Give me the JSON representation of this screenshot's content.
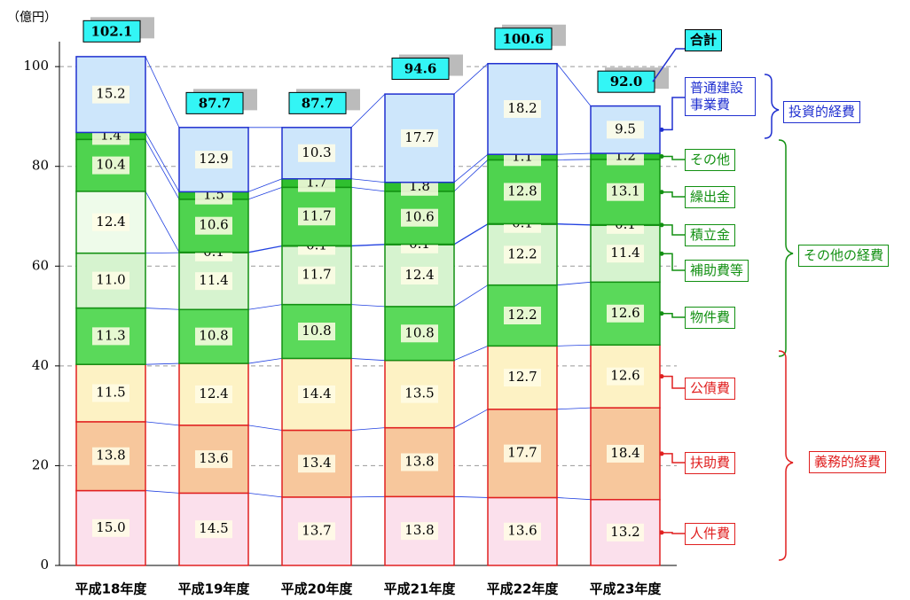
{
  "chart_data": {
    "type": "stacked_bar",
    "unit": "（億円）",
    "categories": [
      "平成18年度",
      "平成19年度",
      "平成20年度",
      "平成21年度",
      "平成22年度",
      "平成23年度"
    ],
    "series": [
      {
        "name": "人件費",
        "color": "#fbe0ec",
        "edgecolor": "#e02020",
        "values": [
          15.0,
          14.5,
          13.7,
          13.8,
          13.6,
          13.2
        ],
        "value_labels": [
          "15.0",
          "14.5",
          "13.7",
          "13.8",
          "13.6",
          "13.2"
        ]
      },
      {
        "name": "扶助費",
        "color": "#f7c79c",
        "edgecolor": "#e02020",
        "values": [
          13.8,
          13.6,
          13.4,
          13.8,
          17.7,
          18.4
        ],
        "value_labels": [
          "13.8",
          "13.6",
          "13.4",
          "13.8",
          "17.7",
          "18.4"
        ]
      },
      {
        "name": "公債費",
        "color": "#fdf2c4",
        "edgecolor": "#e02020",
        "values": [
          11.5,
          12.4,
          14.4,
          13.5,
          12.7,
          12.6
        ],
        "value_labels": [
          "11.5",
          "12.4",
          "14.4",
          "13.5",
          "12.7",
          "12.6"
        ]
      },
      {
        "name": "物件費",
        "color": "#5ad95a",
        "edgecolor": "#129012",
        "values": [
          11.3,
          10.8,
          10.8,
          10.8,
          12.2,
          12.6
        ],
        "value_labels": [
          "11.3",
          "10.8",
          "10.8",
          "10.8",
          "12.2",
          "12.6"
        ]
      },
      {
        "name": "補助費等",
        "color": "#d6f3cf",
        "edgecolor": "#129012",
        "values": [
          11.0,
          11.4,
          11.7,
          12.4,
          12.2,
          11.4
        ],
        "value_labels": [
          "11.0",
          "11.4",
          "11.7",
          "12.4",
          "12.2",
          "11.4"
        ]
      },
      {
        "name": "積立金",
        "color": "#eefbea",
        "edgecolor": "#129012",
        "values": [
          12.4,
          0.1,
          0.1,
          0.1,
          0.1,
          0.1
        ],
        "value_labels": [
          "12.4",
          "0.1",
          "0.1",
          "0.1",
          "0.1",
          "0.1"
        ]
      },
      {
        "name": "繰出金",
        "color": "#4fd34f",
        "edgecolor": "#129012",
        "values": [
          10.4,
          10.6,
          11.7,
          10.6,
          12.8,
          13.1
        ],
        "value_labels": [
          "10.4",
          "10.6",
          "11.7",
          "10.6",
          "12.8",
          "13.1"
        ]
      },
      {
        "name": "その他",
        "color": "#2fbf2f",
        "edgecolor": "#129012",
        "values": [
          1.4,
          1.5,
          1.7,
          1.8,
          1.1,
          1.2
        ],
        "value_labels": [
          "1.4",
          "1.5",
          "1.7",
          "1.8",
          "1.1",
          "1.2"
        ]
      },
      {
        "name": "普通建設事業費",
        "color": "#cde6fb",
        "edgecolor": "#2030d0",
        "values": [
          15.2,
          12.9,
          10.3,
          17.7,
          18.2,
          9.5
        ],
        "value_labels": [
          "15.2",
          "12.9",
          "10.3",
          "17.7",
          "18.2",
          "9.5"
        ]
      }
    ],
    "total_name": "合計",
    "totals": [
      102.1,
      87.7,
      87.7,
      94.6,
      100.6,
      92.0
    ],
    "total_labels": [
      "102.1",
      "87.7",
      "87.7",
      "94.6",
      "100.6",
      "92.0"
    ],
    "groups": [
      "投資的経費",
      "その他の経費",
      "義務的経費"
    ],
    "ylim": [
      0,
      105
    ],
    "yticks": [
      0,
      20,
      40,
      60,
      80,
      100
    ],
    "grid": true
  }
}
